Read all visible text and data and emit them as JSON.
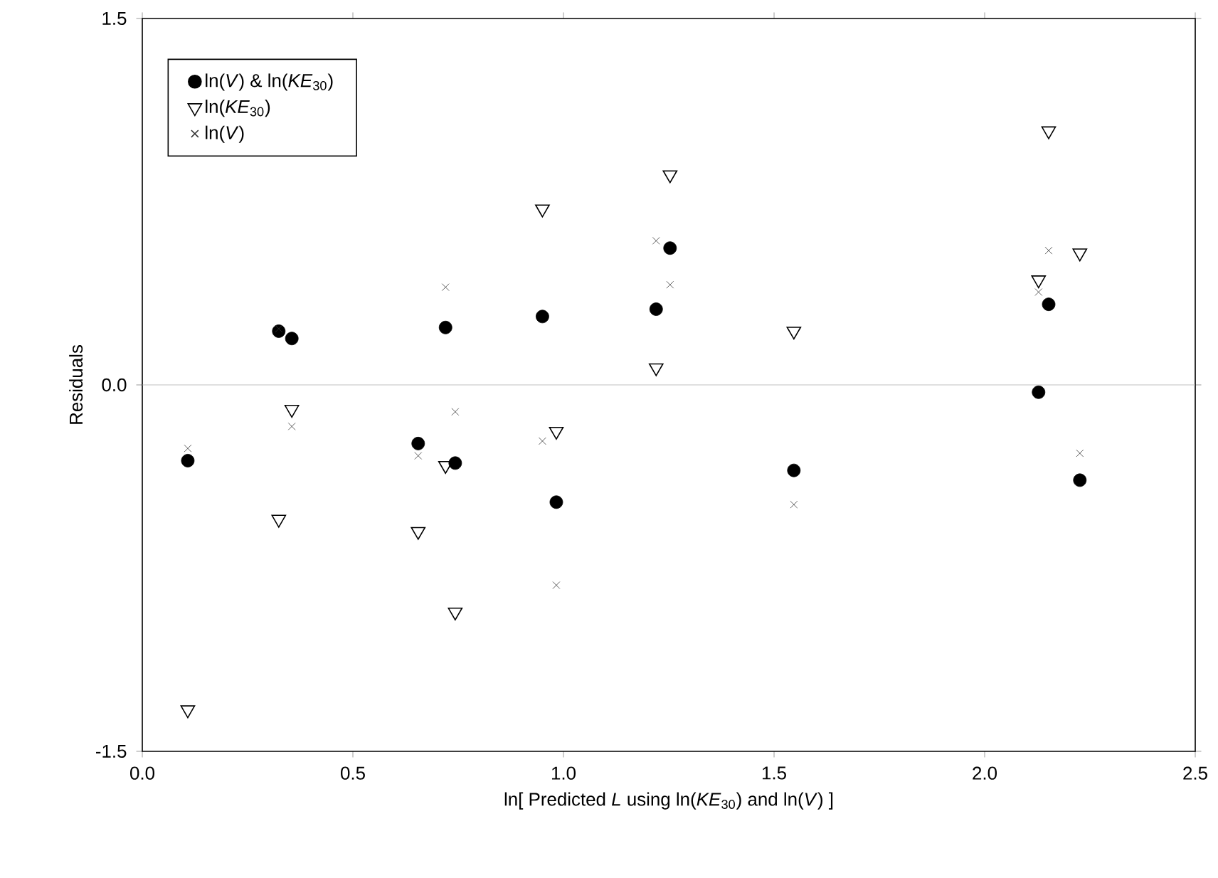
{
  "chart_data": {
    "type": "scatter",
    "xlabel": "ln[ Predicted *L* using ln(*KE*$_{30}$) and ln(*V*) ]",
    "ylabel": "Residuals",
    "xlim": [
      0,
      2.5
    ],
    "ylim": [
      -1.5,
      1.5
    ],
    "xticks": [
      {
        "value": 0,
        "label": "0.0"
      },
      {
        "value": 0.5,
        "label": "0.5"
      },
      {
        "value": 1,
        "label": "1.0"
      },
      {
        "value": 1.5,
        "label": "1.5"
      },
      {
        "value": 2,
        "label": "2.0"
      },
      {
        "value": 2.5,
        "label": "2.5"
      }
    ],
    "yticks": [
      {
        "value": -1.5,
        "label": "-1.5"
      },
      {
        "value": 0,
        "label": "0.0"
      },
      {
        "value": 1.5,
        "label": "1.5"
      }
    ],
    "legend": "top left",
    "grid": false,
    "ref_lines": [
      {
        "axis": "y",
        "value": 0,
        "color": "#b0b0b0"
      }
    ],
    "series": [
      {
        "name": "ln(*V*) & ln(*KE*$_{30}$)",
        "color": "#000000",
        "marker": "circle",
        "x": [
          0.108,
          0.324,
          0.355,
          0.655,
          0.72,
          0.743,
          0.95,
          0.983,
          1.22,
          1.253,
          1.547,
          2.128,
          2.152,
          2.226
        ],
        "values": [
          -0.31,
          0.22,
          0.19,
          -0.24,
          0.235,
          -0.32,
          0.28,
          -0.48,
          0.31,
          0.56,
          -0.35,
          -0.03,
          0.33,
          -0.39
        ]
      },
      {
        "name": "ln(*KE*$_{30}$)",
        "color": "#000000",
        "marker": "triangle",
        "x": [
          0.108,
          0.324,
          0.355,
          0.655,
          0.72,
          0.743,
          0.95,
          0.983,
          1.22,
          1.253,
          1.547,
          2.128,
          2.152,
          2.226
        ],
        "values": [
          -1.33,
          -0.55,
          -0.1,
          -0.6,
          -0.33,
          -0.93,
          0.72,
          -0.19,
          0.07,
          0.86,
          0.22,
          0.43,
          1.04,
          0.54
        ]
      },
      {
        "name": "ln(*V*)",
        "color": "#333333",
        "marker": "cross",
        "x": [
          0.108,
          0.324,
          0.355,
          0.655,
          0.72,
          0.743,
          0.95,
          0.983,
          1.22,
          1.253,
          1.547,
          2.128,
          2.152,
          2.226
        ],
        "values": [
          -0.26,
          0.23,
          -0.17,
          -0.29,
          0.4,
          -0.11,
          -0.23,
          -0.82,
          0.59,
          0.41,
          -0.49,
          0.38,
          0.55,
          -0.28
        ]
      }
    ]
  }
}
